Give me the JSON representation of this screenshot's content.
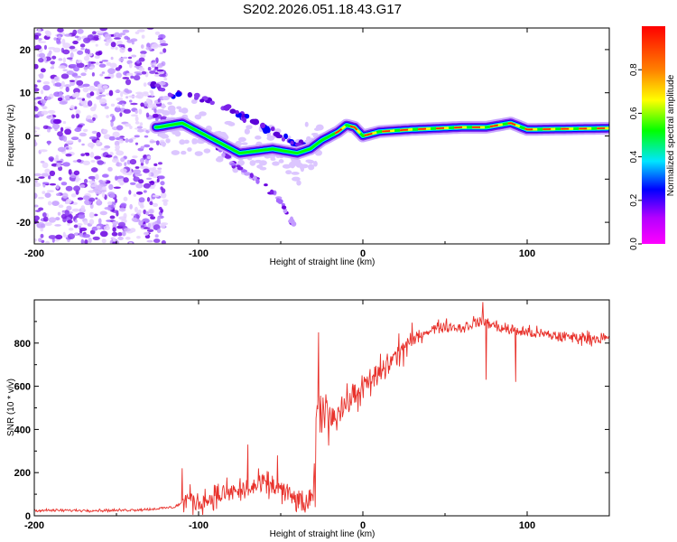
{
  "title": "S202.2026.051.18.43.G17",
  "chart_data": [
    {
      "type": "heatmap",
      "title": "S202.2026.051.18.43.G17",
      "xlabel": "Height of straight line (km)",
      "ylabel": "Frequency (Hz)",
      "xlim": [
        -200,
        150
      ],
      "ylim": [
        -25,
        25
      ],
      "xticks": [
        -200,
        -100,
        0,
        100
      ],
      "xtick_labels": [
        "-200",
        "-100",
        "0",
        "100"
      ],
      "yticks": [
        20,
        10,
        0,
        -10,
        -20
      ],
      "ytick_labels": [
        "20",
        "10",
        "0",
        "-10",
        "-20"
      ],
      "colorbar": {
        "label": "Normalized spectral amplitude",
        "range": [
          0,
          1
        ],
        "ticks": [
          0.0,
          0.2,
          0.4,
          0.6,
          0.8
        ],
        "tick_labels": [
          "0.0",
          "0.2",
          "0.4",
          "0.6",
          "0.8"
        ],
        "colors": [
          "#ff00ff",
          "#b400ff",
          "#0000ff",
          "#00e6ff",
          "#00ff00",
          "#ffff00",
          "#ff8000",
          "#ff0000"
        ]
      },
      "features": {
        "noise_region_x": [
          -200,
          -130
        ],
        "ridge": [
          {
            "x": -125,
            "y": 2
          },
          {
            "x": -110,
            "y": 3
          },
          {
            "x": -95,
            "y": 0
          },
          {
            "x": -85,
            "y": -2
          },
          {
            "x": -75,
            "y": -4
          },
          {
            "x": -55,
            "y": -3
          },
          {
            "x": -40,
            "y": -4
          },
          {
            "x": -32,
            "y": -3
          },
          {
            "x": -25,
            "y": -1
          },
          {
            "x": -15,
            "y": 1
          },
          {
            "x": -10,
            "y": 2.5
          },
          {
            "x": -5,
            "y": 2
          },
          {
            "x": 0,
            "y": 0
          },
          {
            "x": 10,
            "y": 1
          },
          {
            "x": 30,
            "y": 1.5
          },
          {
            "x": 60,
            "y": 2
          },
          {
            "x": 75,
            "y": 2
          },
          {
            "x": 90,
            "y": 3
          },
          {
            "x": 100,
            "y": 1.5
          },
          {
            "x": 150,
            "y": 1.8
          }
        ],
        "upper_branch": [
          {
            "x": -128,
            "y": 12
          },
          {
            "x": -120,
            "y": 10
          },
          {
            "x": -100,
            "y": 9
          },
          {
            "x": -85,
            "y": 7
          },
          {
            "x": -70,
            "y": 4
          },
          {
            "x": -55,
            "y": 1
          },
          {
            "x": -40,
            "y": -2
          },
          {
            "x": -30,
            "y": -3
          }
        ],
        "lower_branch": [
          {
            "x": -90,
            "y": -2
          },
          {
            "x": -80,
            "y": -6
          },
          {
            "x": -65,
            "y": -10
          },
          {
            "x": -50,
            "y": -15
          },
          {
            "x": -40,
            "y": -22
          }
        ]
      }
    },
    {
      "type": "line",
      "title": "",
      "xlabel": "Height of straight line (km)",
      "ylabel": "SNR (10 * v/v)",
      "xlim": [
        -200,
        150
      ],
      "ylim": [
        0,
        1000
      ],
      "xticks": [
        -200,
        -100,
        0,
        100
      ],
      "xtick_labels": [
        "-200",
        "-100",
        "0",
        "100"
      ],
      "yticks": [
        0,
        200,
        400,
        600,
        800
      ],
      "ytick_labels": [
        "0",
        "200",
        "400",
        "600",
        "800"
      ],
      "color": "#e8312b",
      "x": [
        -200,
        -150,
        -130,
        -115,
        -105,
        -100,
        -90,
        -80,
        -70,
        -60,
        -50,
        -40,
        -35,
        -30,
        -28,
        -25,
        -20,
        -15,
        -10,
        -5,
        0,
        5,
        10,
        15,
        20,
        25,
        30,
        40,
        50,
        60,
        70,
        75,
        80,
        90,
        100,
        120,
        150
      ],
      "values": [
        25,
        25,
        30,
        40,
        80,
        60,
        90,
        110,
        120,
        150,
        120,
        70,
        50,
        80,
        450,
        500,
        460,
        480,
        520,
        560,
        590,
        620,
        660,
        700,
        740,
        780,
        810,
        860,
        880,
        870,
        900,
        900,
        880,
        860,
        850,
        830,
        820
      ],
      "spikes": [
        {
          "x": -27,
          "y": 850
        },
        {
          "x": -29,
          "y": 40
        },
        {
          "x": -110,
          "y": 220
        },
        {
          "x": -70,
          "y": 330
        },
        {
          "x": -52,
          "y": 280
        },
        {
          "x": 73,
          "y": 990
        },
        {
          "x": 75,
          "y": 630
        },
        {
          "x": 93,
          "y": 620
        }
      ]
    }
  ]
}
